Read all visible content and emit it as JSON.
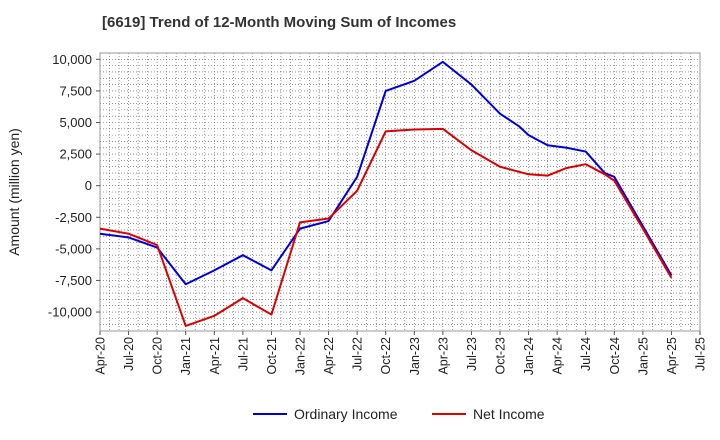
{
  "chart_data": {
    "type": "line",
    "title": "[6619]  Trend of 12-Month Moving Sum of Incomes",
    "xlabel": "",
    "ylabel": "Amount (million yen)",
    "ylim": [
      -11500,
      10500
    ],
    "y_ticks": [
      10000,
      7500,
      5000,
      2500,
      0,
      -2500,
      -5000,
      -7500,
      -10000
    ],
    "y_tick_labels": [
      "10,000",
      "7,500",
      "5,000",
      "2,500",
      "0",
      "-2,500",
      "-5,000",
      "-7,500",
      "-10,000"
    ],
    "x_tick_labels": [
      "Apr-20",
      "Jul-20",
      "Oct-20",
      "Jan-21",
      "Apr-21",
      "Jul-21",
      "Oct-21",
      "Jan-22",
      "Apr-22",
      "Jul-22",
      "Oct-22",
      "Jan-23",
      "Apr-23",
      "Jul-23",
      "Oct-23",
      "Jan-24",
      "Apr-24",
      "Jul-24",
      "Oct-24",
      "Jan-25",
      "Apr-25",
      "Jul-25"
    ],
    "x": [
      "Apr-20",
      "Jul-20",
      "Oct-20",
      "Jan-21",
      "Apr-21",
      "Jul-21",
      "Oct-21",
      "Jan-22",
      "Apr-22",
      "Jul-22",
      "Oct-22",
      "Jan-23",
      "Apr-23",
      "Jul-23",
      "Oct-23",
      "Dec-23",
      "Jan-24",
      "Mar-24",
      "Apr-24",
      "May-24",
      "Jul-24",
      "Sep-24",
      "Oct-24",
      "Jan-25",
      "Apr-25"
    ],
    "grid": true,
    "legend_position": "bottom-center",
    "series": [
      {
        "name": "Ordinary Income",
        "color": "#0000dd",
        "values": [
          -3800,
          -4100,
          -4900,
          -7800,
          -6700,
          -5500,
          -6700,
          -3400,
          -2800,
          700,
          7500,
          8300,
          9800,
          8000,
          5700,
          4700,
          4000,
          3200,
          3100,
          3000,
          2700,
          1000,
          700,
          -3200,
          -7100
        ]
      },
      {
        "name": "Net Income",
        "color": "#dd0000",
        "values": [
          -3400,
          -3800,
          -4700,
          -11100,
          -10300,
          -8900,
          -10200,
          -2900,
          -2600,
          -400,
          4300,
          4450,
          4500,
          2800,
          1500,
          1100,
          900,
          800,
          1100,
          1400,
          1700,
          900,
          400,
          -3400,
          -7300
        ]
      }
    ]
  }
}
